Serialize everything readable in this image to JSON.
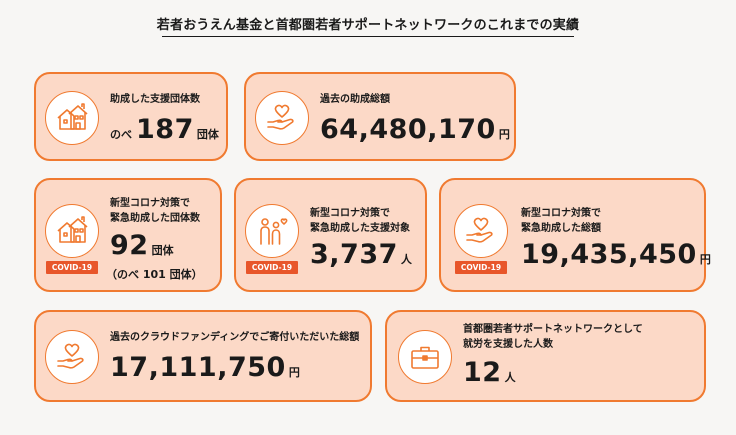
{
  "title": "若者おうえん基金と首都圏若者サポートネットワークのこれまでの実績",
  "colors": {
    "accent": "#f07a30",
    "card_bg": "#fcd9c7",
    "badge": "#e8562a"
  },
  "cards": [
    {
      "icon": "house-icon",
      "label": "助成した支援団体数",
      "prefix": "のべ",
      "value": "187",
      "unit": "団体"
    },
    {
      "icon": "hand-heart-icon",
      "label": "過去の助成総額",
      "value": "64,480,170",
      "unit": "円"
    },
    {
      "icon": "house-icon",
      "badge": "COVID-19",
      "label_lines": [
        "新型コロナ対策で",
        "緊急助成した団体数"
      ],
      "value": "92",
      "unit": "団体",
      "sub": "（のべ 101 団体）"
    },
    {
      "icon": "people-heart-icon",
      "badge": "COVID-19",
      "label_lines": [
        "新型コロナ対策で",
        "緊急助成した支援対象"
      ],
      "value": "3,737",
      "unit": "人"
    },
    {
      "icon": "hand-heart-icon",
      "badge": "COVID-19",
      "label_lines": [
        "新型コロナ対策で",
        "緊急助成した総額"
      ],
      "value": "19,435,450",
      "unit": "円"
    },
    {
      "icon": "hand-heart-icon",
      "label": "過去のクラウドファンディングでご寄付いただいた総額",
      "value": "17,111,750",
      "unit": "円"
    },
    {
      "icon": "briefcase-icon",
      "label_lines": [
        "首都圏若者サポートネットワークとして",
        "就労を支援した人数"
      ],
      "value": "12",
      "unit": "人"
    }
  ]
}
